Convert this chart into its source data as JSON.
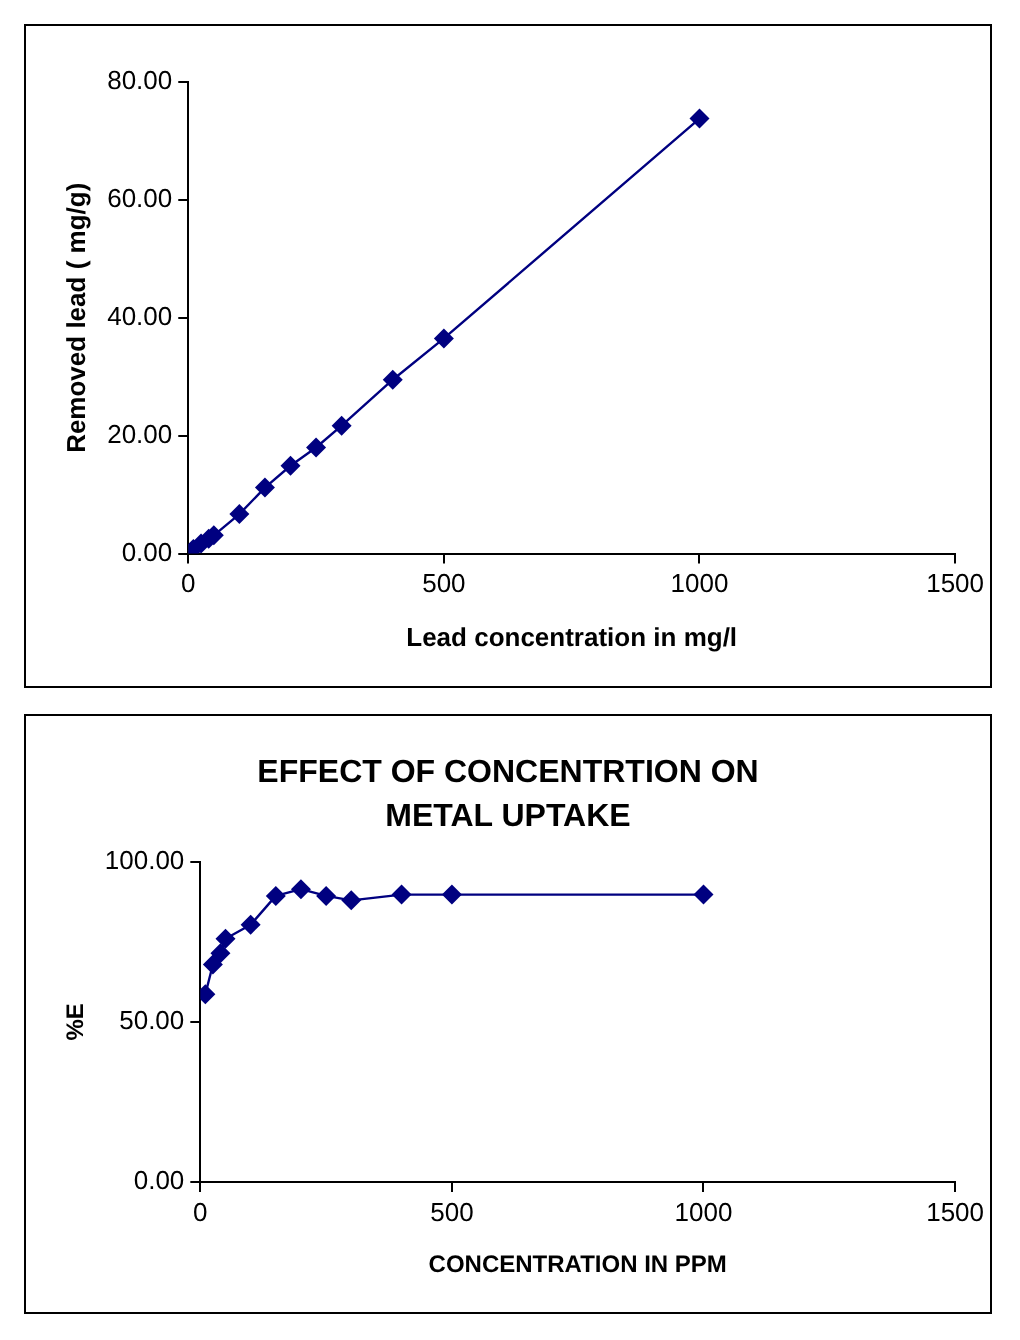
{
  "chart_data": [
    {
      "type": "line",
      "xlabel": "Lead concentration in mg/l",
      "ylabel": "Removed lead ( mg/g)",
      "x": [
        10,
        25,
        40,
        50,
        100,
        150,
        200,
        250,
        300,
        400,
        500,
        1000
      ],
      "series": [
        {
          "color": "#000080",
          "values": [
            0.8,
            1.7,
            2.5,
            3.1,
            6.7,
            11.2,
            14.9,
            18.0,
            21.7,
            29.5,
            36.5,
            73.8
          ]
        }
      ],
      "xlim": [
        0,
        1500
      ],
      "xticks": [
        0,
        500,
        1000,
        1500
      ],
      "ylim": [
        0,
        80
      ],
      "yticks": [
        {
          "value": 0,
          "label": "0.00"
        },
        {
          "value": 20,
          "label": "20.00"
        },
        {
          "value": 40,
          "label": "40.00"
        },
        {
          "value": 60,
          "label": "60.00"
        },
        {
          "value": 80,
          "label": "80.00"
        }
      ],
      "grid": false,
      "legend": false,
      "marker": "diamond",
      "line_style": "solid"
    },
    {
      "type": "line",
      "title": "EFFECT OF CONCENTRTION ON METAL UPTAKE",
      "xlabel": "CONCENTRATION IN PPM",
      "ylabel": "%E",
      "x": [
        10,
        25,
        40,
        50,
        100,
        150,
        200,
        250,
        300,
        400,
        500,
        1000
      ],
      "series": [
        {
          "color": "#000080",
          "values": [
            58.6,
            67.9,
            71.4,
            75.9,
            80.3,
            89.3,
            91.4,
            89.3,
            87.9,
            89.7,
            89.7,
            89.7
          ]
        }
      ],
      "xlim": [
        0,
        1500
      ],
      "xticks": [
        0,
        500,
        1000,
        1500
      ],
      "ylim": [
        0,
        100
      ],
      "yticks": [
        {
          "value": 0,
          "label": "0.00"
        },
        {
          "value": 50,
          "label": "50.00"
        },
        {
          "value": 100,
          "label": "100.00"
        }
      ],
      "grid": false,
      "legend": false,
      "marker": "diamond",
      "line_style": "solid"
    }
  ]
}
